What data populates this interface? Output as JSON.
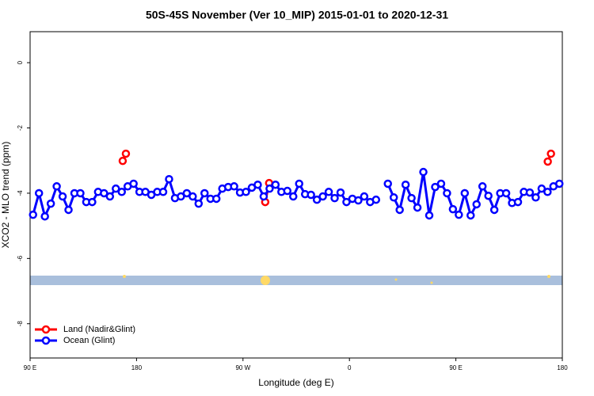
{
  "chart_data": {
    "type": "line",
    "title": "50S-45S November (Ver 10_MIP)   2015-01-01 to 2020-12-31",
    "x_label": "Longitude (deg E)",
    "y_label": "XCO2 - MLO trend (ppm)",
    "xlim": [
      90,
      540
    ],
    "xticks": [
      {
        "value": 90,
        "label": "90 E"
      },
      180,
      {
        "value": 270,
        "label": "90 W"
      },
      {
        "value": 360,
        "label": "0"
      },
      {
        "value": 450,
        "label": "90 E"
      },
      {
        "value": 540,
        "label": "180"
      }
    ],
    "ylim": [
      -9.05,
      0.95
    ],
    "yticks": [
      0,
      -2,
      -4,
      -6,
      -8
    ],
    "legend": "bottom-left",
    "series": [
      {
        "name": "Land (Nadir&Glint)",
        "color": "#ff0000",
        "x": [
          168.3,
          171,
          288.8,
          292.1,
          527.7,
          530.4
        ],
        "values": [
          -3.01,
          -2.79,
          -4.27,
          -3.69,
          -3.03,
          -2.79
        ]
      },
      {
        "name": "Ocean (Glint)",
        "color": "#0000ff",
        "x": [
          92.5,
          97.5,
          102.5,
          107.5,
          112.5,
          117.5,
          122.5,
          127.5,
          132.5,
          137.5,
          142.5,
          147.5,
          152.5,
          157.5,
          162.5,
          167.5,
          172.5,
          177.5,
          182.5,
          187.5,
          192.5,
          197.5,
          202.5,
          207.5,
          212.5,
          217.5,
          222.5,
          227.5,
          232.5,
          237.5,
          242.5,
          247.5,
          252.5,
          257.5,
          262.5,
          267.5,
          272.5,
          277.5,
          282.5,
          287.5,
          292.5,
          297.5,
          302.5,
          307.5,
          312.5,
          317.5,
          322.5,
          327.5,
          332.5,
          337.5,
          342.5,
          347.5,
          352.5,
          357.5,
          362.5,
          367.5,
          372.5,
          377.5,
          382.5,
          387.5,
          392.5,
          397.5,
          402.5,
          407.5,
          412.5,
          417.5,
          422.5,
          427.5,
          432.5,
          437.5,
          442.5,
          447.5,
          452.5,
          457.5,
          462.5,
          467.5,
          472.5,
          477.5,
          482.5,
          487.5,
          492.5,
          497.5,
          502.5,
          507.5,
          512.5,
          517.5,
          522.5,
          527.5,
          532.5,
          537.5
        ],
        "values": [
          -4.66,
          -4.0,
          -4.71,
          -4.32,
          -3.79,
          -4.1,
          -4.51,
          -4.0,
          -4.0,
          -4.27,
          -4.27,
          -3.96,
          -4.0,
          -4.1,
          -3.86,
          -3.96,
          -3.79,
          -3.71,
          -3.96,
          -3.96,
          -4.05,
          -3.96,
          -3.96,
          -3.57,
          -4.15,
          -4.1,
          -4.0,
          -4.1,
          -4.32,
          -4.0,
          -4.17,
          -4.17,
          -3.86,
          -3.81,
          -3.79,
          -3.98,
          -3.96,
          -3.83,
          -3.74,
          -4.1,
          -3.86,
          -3.74,
          -3.96,
          -3.93,
          -4.1,
          -3.71,
          -4.03,
          -4.05,
          -4.2,
          -4.1,
          -3.96,
          -4.15,
          -3.98,
          -4.27,
          -4.17,
          -4.22,
          -4.1,
          -4.27,
          -4.2,
          null,
          -3.71,
          -4.13,
          -4.51,
          -3.74,
          -4.15,
          -4.44,
          -3.35,
          -4.68,
          -3.81,
          -3.71,
          -4.0,
          -4.49,
          -4.66,
          -4.0,
          -4.68,
          -4.34,
          -3.79,
          -4.08,
          -4.51,
          -4.0,
          -4.0,
          -4.3,
          -4.27,
          -3.96,
          -3.98,
          -4.13,
          -3.86,
          -3.96,
          -3.79,
          -3.71
        ]
      }
    ]
  }
}
